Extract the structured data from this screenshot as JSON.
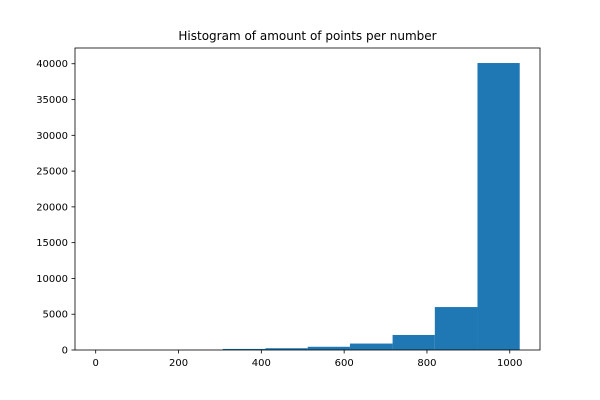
{
  "chart_data": {
    "type": "bar",
    "title": "Histogram of amount of points per number",
    "xlabel": "",
    "ylabel": "",
    "xlim": [
      -50,
      1073
    ],
    "ylim": [
      0,
      42200
    ],
    "bar_color": "#1f77b4",
    "bins": [
      {
        "start": 0,
        "end": 102,
        "count": 5
      },
      {
        "start": 102,
        "end": 205,
        "count": 10
      },
      {
        "start": 205,
        "end": 307,
        "count": 20
      },
      {
        "start": 307,
        "end": 410,
        "count": 150
      },
      {
        "start": 410,
        "end": 512,
        "count": 250
      },
      {
        "start": 512,
        "end": 614,
        "count": 450
      },
      {
        "start": 614,
        "end": 717,
        "count": 900
      },
      {
        "start": 717,
        "end": 819,
        "count": 2100
      },
      {
        "start": 819,
        "end": 922,
        "count": 6000
      },
      {
        "start": 922,
        "end": 1024,
        "count": 40100
      }
    ],
    "x_ticks": [
      0,
      200,
      400,
      600,
      800,
      1000
    ],
    "y_ticks": [
      0,
      5000,
      10000,
      15000,
      20000,
      25000,
      30000,
      35000,
      40000
    ],
    "grid": false,
    "legend": "none"
  }
}
